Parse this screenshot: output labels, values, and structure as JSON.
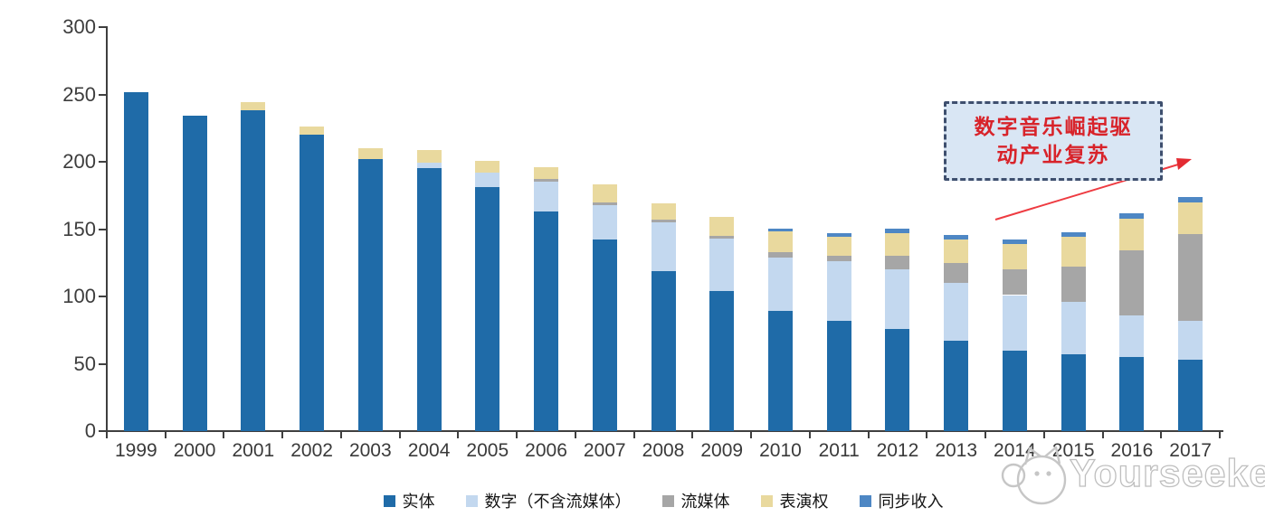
{
  "chart_data": {
    "type": "bar",
    "stacked": true,
    "categories": [
      "1999",
      "2000",
      "2001",
      "2002",
      "2003",
      "2004",
      "2005",
      "2006",
      "2007",
      "2008",
      "2009",
      "2010",
      "2011",
      "2012",
      "2013",
      "2014",
      "2015",
      "2016",
      "2017"
    ],
    "series": [
      {
        "name": "实体",
        "color": "#1f6ba8",
        "values": [
          252,
          234,
          238,
          220,
          202,
          195,
          181,
          163,
          142,
          119,
          104,
          89,
          82,
          76,
          67,
          60,
          57,
          55,
          53
        ]
      },
      {
        "name": "数字（不含流媒体）",
        "color": "#c3d8ef",
        "values": [
          0,
          0,
          0,
          0,
          0,
          4,
          11,
          22,
          26,
          36,
          39,
          40,
          44,
          44,
          43,
          41,
          39,
          31,
          29
        ]
      },
      {
        "name": "流媒体",
        "color": "#a6a6a6",
        "values": [
          0,
          0,
          0,
          0,
          0,
          0,
          0,
          2,
          2,
          2,
          2,
          4,
          4,
          10,
          15,
          19,
          26,
          48,
          64
        ]
      },
      {
        "name": "表演权",
        "color": "#e9d99e",
        "values": [
          0,
          0,
          6,
          6,
          8,
          10,
          9,
          9,
          13,
          12,
          14,
          15,
          14,
          17,
          17,
          19,
          22,
          24,
          24
        ]
      },
      {
        "name": "同步收入",
        "color": "#4e87c4",
        "values": [
          0,
          0,
          0,
          0,
          0,
          0,
          0,
          0,
          0,
          0,
          0,
          2.5,
          3,
          3.5,
          3.5,
          3,
          3.5,
          4,
          3.5
        ]
      }
    ],
    "ylim": [
      0,
      300
    ],
    "yticks": [
      0,
      50,
      100,
      150,
      200,
      250,
      300
    ],
    "grid": false,
    "legend_position": "bottom",
    "title": "",
    "xlabel": "",
    "ylabel": ""
  },
  "annotation": {
    "line1": "数字音乐崛起驱",
    "line2": "动产业复苏"
  },
  "watermark": {
    "text": "Yourseeker"
  }
}
